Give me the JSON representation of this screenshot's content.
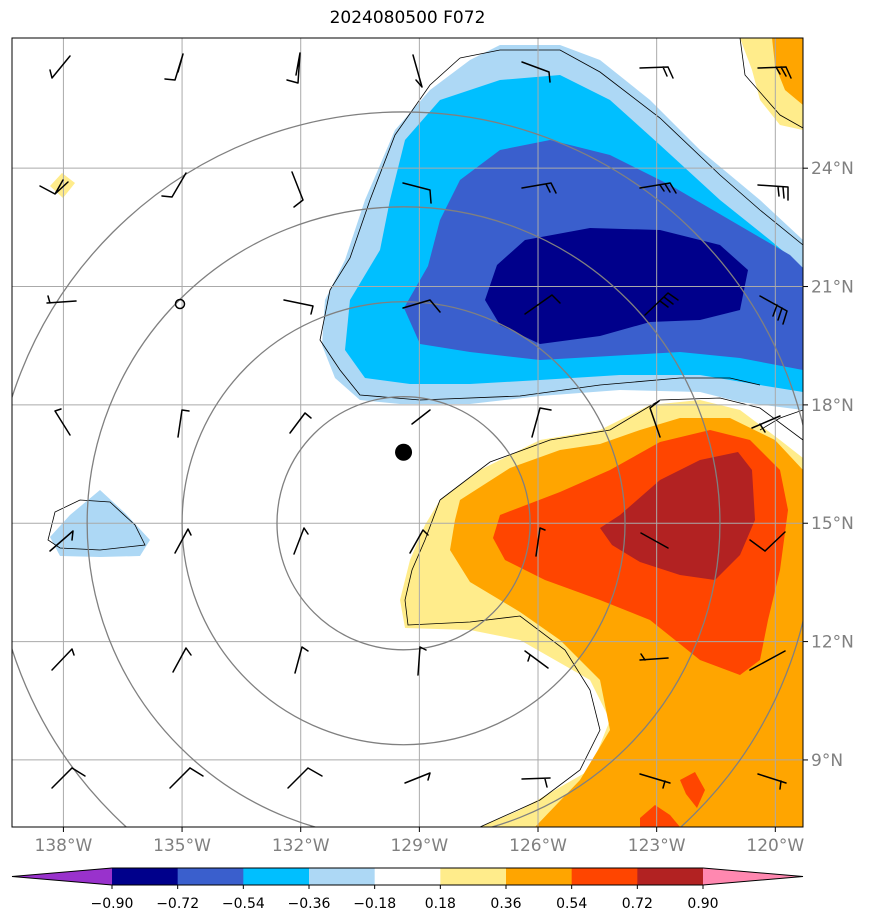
{
  "title": "2024080500 F072",
  "map": {
    "lon_range": [
      -139.3,
      -119.3
    ],
    "lat_range": [
      7.3,
      27.3
    ],
    "lon_ticks": [
      {
        "value": -138,
        "label": "138°W"
      },
      {
        "value": -135,
        "label": "135°W"
      },
      {
        "value": -132,
        "label": "132°W"
      },
      {
        "value": -129,
        "label": "129°W"
      },
      {
        "value": -126,
        "label": "126°W"
      },
      {
        "value": -123,
        "label": "123°W"
      },
      {
        "value": -120,
        "label": "120°W"
      }
    ],
    "lat_ticks": [
      {
        "value": 9,
        "label": "9°N"
      },
      {
        "value": 12,
        "label": "12°N"
      },
      {
        "value": 15,
        "label": "15°N"
      },
      {
        "value": 18,
        "label": "18°N"
      },
      {
        "value": 21,
        "label": "21°N"
      },
      {
        "value": 24,
        "label": "24°N"
      }
    ],
    "storm_center": {
      "lon": -129.4,
      "lat": 16.8
    },
    "pressure_center": {
      "lon": -129.4,
      "lat": 15.0
    },
    "pressure_contour_radii_deg": [
      3.2,
      5.6,
      8.0,
      10.4
    ]
  },
  "colorbar": {
    "levels": [
      "−0.90",
      "−0.72",
      "−0.54",
      "−0.36",
      "−0.18",
      "0.18",
      "0.36",
      "0.54",
      "0.72",
      "0.90"
    ],
    "colors": [
      "#9932cc",
      "#00008b",
      "#3a5fcd",
      "#00bfff",
      "#add8f5",
      "#ffffff",
      "#ffec8b",
      "#ffa500",
      "#ff4500",
      "#b22222",
      "#ff88b0"
    ]
  },
  "colors": {
    "grid": "#aaaaaa",
    "contour": "#808080",
    "tick_label": "#808080"
  }
}
